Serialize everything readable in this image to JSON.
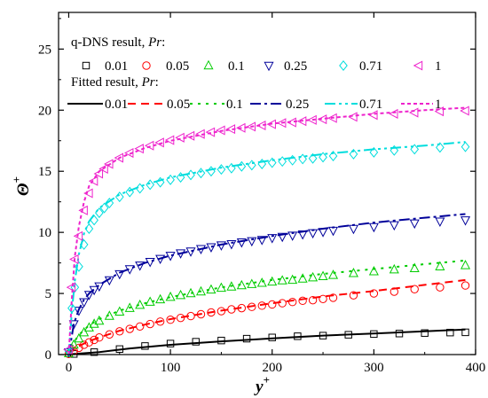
{
  "chart_data": {
    "type": "scatter",
    "xlabel": "y",
    "xlabel_sup": "+",
    "ylabel": "Θ",
    "ylabel_sup": "+",
    "xlim": [
      -10,
      400
    ],
    "ylim": [
      0,
      28
    ],
    "x_ticks": [
      0,
      100,
      200,
      300,
      400
    ],
    "y_ticks": [
      0,
      5,
      10,
      15,
      20,
      25
    ],
    "legend": {
      "placement": "top-left",
      "title_markers_prefix": "q-DNS result, ",
      "title_markers_var": "Pr",
      "title_markers_suffix": ":",
      "title_lines_prefix": "Fitted result, ",
      "title_lines_var": "Pr",
      "title_lines_suffix": ":"
    },
    "series": [
      {
        "pr": "0.01",
        "color": "#000000",
        "marker": "square",
        "dash": "solid",
        "x": [
          5,
          25,
          50,
          75,
          100,
          125,
          150,
          175,
          200,
          225,
          250,
          275,
          300,
          325,
          350,
          375,
          390
        ],
        "y": [
          0.05,
          0.2,
          0.45,
          0.7,
          0.9,
          1.05,
          1.15,
          1.3,
          1.4,
          1.5,
          1.55,
          1.62,
          1.68,
          1.72,
          1.76,
          1.8,
          1.82
        ],
        "fit_x": [
          0,
          30,
          60,
          100,
          150,
          200,
          250,
          300,
          350,
          390
        ],
        "fit_y": [
          0.02,
          0.2,
          0.5,
          0.8,
          1.08,
          1.32,
          1.55,
          1.72,
          1.9,
          2.05
        ]
      },
      {
        "pr": "0.05",
        "color": "#ff0000",
        "marker": "circle",
        "dash": "9,6",
        "x": [
          0,
          5,
          10,
          15,
          20,
          25,
          30,
          40,
          50,
          60,
          70,
          80,
          90,
          100,
          110,
          120,
          130,
          140,
          150,
          160,
          170,
          180,
          190,
          200,
          210,
          220,
          230,
          240,
          250,
          260,
          280,
          300,
          320,
          340,
          365,
          390
        ],
        "y": [
          0.05,
          0.3,
          0.55,
          0.8,
          1.0,
          1.2,
          1.4,
          1.65,
          1.9,
          2.1,
          2.3,
          2.5,
          2.7,
          2.85,
          3.0,
          3.15,
          3.3,
          3.45,
          3.55,
          3.7,
          3.8,
          3.9,
          4.0,
          4.1,
          4.2,
          4.3,
          4.4,
          4.45,
          4.55,
          4.65,
          4.85,
          5.0,
          5.15,
          5.35,
          5.5,
          5.65
        ],
        "fit_x": [
          0,
          5,
          10,
          20,
          30,
          50,
          75,
          100,
          150,
          200,
          250,
          300,
          350,
          390
        ],
        "fit_y": [
          0,
          0.4,
          0.7,
          1.1,
          1.4,
          1.95,
          2.45,
          2.9,
          3.6,
          4.2,
          4.75,
          5.2,
          5.7,
          6.1
        ]
      },
      {
        "pr": "0.1",
        "color": "#00cc00",
        "marker": "triangle-up",
        "dash": "3,6",
        "x": [
          0,
          5,
          10,
          15,
          20,
          25,
          30,
          40,
          50,
          60,
          70,
          80,
          90,
          100,
          110,
          120,
          130,
          140,
          150,
          160,
          170,
          180,
          190,
          200,
          210,
          220,
          230,
          240,
          250,
          260,
          280,
          300,
          320,
          340,
          365,
          390
        ],
        "y": [
          0.1,
          0.8,
          1.3,
          1.8,
          2.2,
          2.5,
          2.75,
          3.15,
          3.5,
          3.8,
          4.05,
          4.3,
          4.5,
          4.7,
          4.85,
          5.0,
          5.15,
          5.3,
          5.45,
          5.55,
          5.65,
          5.75,
          5.85,
          5.95,
          6.05,
          6.1,
          6.2,
          6.3,
          6.4,
          6.5,
          6.65,
          6.8,
          6.95,
          7.05,
          7.2,
          7.3
        ],
        "fit_x": [
          0,
          5,
          10,
          20,
          30,
          50,
          75,
          100,
          150,
          200,
          250,
          300,
          350,
          390
        ],
        "fit_y": [
          0,
          1.0,
          1.6,
          2.4,
          2.9,
          3.6,
          4.2,
          4.7,
          5.5,
          6.1,
          6.6,
          7.0,
          7.4,
          7.7
        ]
      },
      {
        "pr": "0.25",
        "color": "#00009a",
        "marker": "triangle-down",
        "dash": "12,4,3,4",
        "x": [
          0,
          5,
          10,
          15,
          20,
          25,
          30,
          40,
          50,
          60,
          70,
          80,
          90,
          100,
          110,
          120,
          130,
          140,
          150,
          160,
          170,
          180,
          190,
          200,
          210,
          220,
          230,
          240,
          250,
          260,
          280,
          300,
          320,
          340,
          365,
          390
        ],
        "y": [
          0.2,
          2.5,
          3.6,
          4.3,
          4.9,
          5.3,
          5.6,
          6.1,
          6.6,
          7.0,
          7.3,
          7.6,
          7.85,
          8.1,
          8.3,
          8.45,
          8.65,
          8.8,
          8.95,
          9.05,
          9.2,
          9.3,
          9.4,
          9.55,
          9.65,
          9.75,
          9.85,
          9.95,
          10.05,
          10.15,
          10.3,
          10.45,
          10.6,
          10.75,
          10.9,
          11.0
        ],
        "fit_x": [
          0,
          5,
          10,
          15,
          20,
          30,
          50,
          75,
          100,
          150,
          200,
          250,
          300,
          350,
          390
        ],
        "fit_y": [
          0,
          2.5,
          3.7,
          4.5,
          5.0,
          5.7,
          6.7,
          7.5,
          8.1,
          9.0,
          9.7,
          10.3,
          10.8,
          11.2,
          11.5
        ]
      },
      {
        "pr": "0.71",
        "color": "#00dddd",
        "marker": "diamond",
        "dash": "12,4,3,4,3,4",
        "x": [
          0,
          3,
          6,
          10,
          15,
          20,
          25,
          30,
          35,
          40,
          50,
          60,
          70,
          80,
          90,
          100,
          110,
          120,
          130,
          140,
          150,
          160,
          170,
          180,
          190,
          200,
          210,
          220,
          230,
          240,
          250,
          260,
          280,
          300,
          320,
          340,
          365,
          390
        ],
        "y": [
          0.3,
          3.8,
          5.5,
          7.2,
          9.0,
          10.3,
          11.0,
          11.6,
          12.0,
          12.4,
          12.9,
          13.3,
          13.6,
          13.9,
          14.1,
          14.3,
          14.5,
          14.7,
          14.85,
          15.0,
          15.15,
          15.25,
          15.4,
          15.5,
          15.6,
          15.7,
          15.8,
          15.9,
          16.0,
          16.05,
          16.15,
          16.25,
          16.4,
          16.55,
          16.7,
          16.8,
          16.95,
          17.0
        ],
        "fit_x": [
          0,
          3,
          6,
          10,
          15,
          20,
          30,
          50,
          75,
          100,
          150,
          200,
          250,
          300,
          350,
          390
        ],
        "fit_y": [
          0,
          3.5,
          6.0,
          8.2,
          9.9,
          10.9,
          12.0,
          13.1,
          13.9,
          14.5,
          15.3,
          15.9,
          16.4,
          16.8,
          17.1,
          17.4
        ]
      },
      {
        "pr": "1",
        "color": "#ee22cc",
        "marker": "triangle-left",
        "dash": "4,3",
        "x": [
          0,
          3,
          6,
          10,
          15,
          20,
          25,
          30,
          35,
          40,
          50,
          60,
          70,
          80,
          90,
          100,
          110,
          120,
          130,
          140,
          150,
          160,
          170,
          180,
          190,
          200,
          210,
          220,
          230,
          240,
          250,
          260,
          280,
          300,
          320,
          340,
          365,
          390
        ],
        "y": [
          0.4,
          5.5,
          7.8,
          9.7,
          11.8,
          13.2,
          14.2,
          14.8,
          15.2,
          15.6,
          16.1,
          16.5,
          16.85,
          17.1,
          17.35,
          17.55,
          17.75,
          17.9,
          18.05,
          18.2,
          18.35,
          18.45,
          18.55,
          18.65,
          18.75,
          18.85,
          18.95,
          19.0,
          19.1,
          19.2,
          19.25,
          19.35,
          19.45,
          19.6,
          19.7,
          19.8,
          19.9,
          19.95
        ],
        "fit_x": [
          0,
          3,
          6,
          10,
          15,
          20,
          30,
          50,
          75,
          100,
          150,
          200,
          250,
          300,
          350,
          390
        ],
        "fit_y": [
          0,
          4.5,
          8.0,
          10.5,
          12.5,
          13.8,
          15.0,
          16.1,
          16.9,
          17.5,
          18.3,
          18.9,
          19.3,
          19.7,
          20.0,
          20.2
        ]
      }
    ]
  }
}
